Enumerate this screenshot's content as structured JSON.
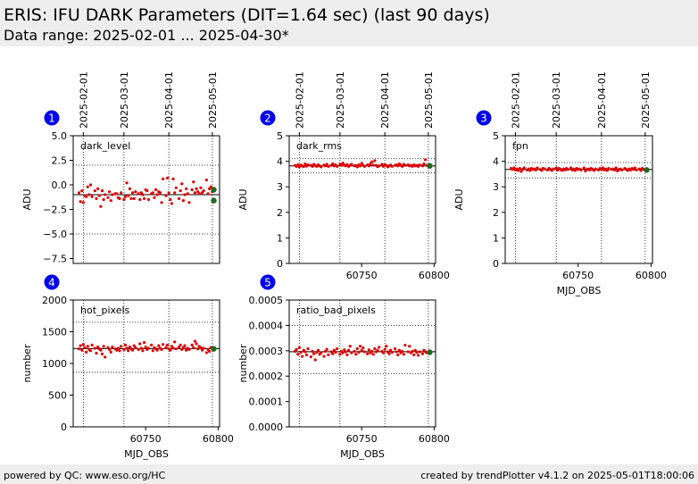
{
  "header": {
    "title": "ERIS: IFU DARK Parameters (DIT=1.64 sec) (last 90 days)",
    "subtitle": "Data range: 2025-02-01 ... 2025-04-30*"
  },
  "footer": {
    "left": "powered by QC: www.eso.org/HC",
    "right": "created by trendPlotter v4.1.2 on 2025-05-01T18:00:06"
  },
  "colors": {
    "points": "#dd0000",
    "latest": "#1f6b1f",
    "badge": "#0000ee",
    "mean_line": "#000000"
  },
  "chart_data": [
    {
      "type": "scatter",
      "badge": "1",
      "label": "dark_level",
      "ylabel": "ADU",
      "xlabel": "",
      "xlim": [
        60700,
        60801
      ],
      "ylim": [
        -8,
        5
      ],
      "yticks": [
        5.0,
        2.5,
        0.0,
        -2.5,
        -5.0,
        -7.5
      ],
      "yticklabels": [
        "5.0",
        "2.5",
        "0.0",
        "−2.5",
        "−5.0",
        "−7.5"
      ],
      "xticks": [],
      "xticklabels": [],
      "top_dates": [
        "2025-02-01",
        "2025-03-01",
        "2025-04-01",
        "2025-05-01"
      ],
      "date_mjd": [
        60707,
        60735,
        60766,
        60796
      ],
      "mean": -1.0,
      "dotted_h": [
        2.0,
        -5.0
      ],
      "x": [
        60704,
        60705,
        60706,
        60707,
        60708,
        60709,
        60710,
        60711,
        60712,
        60713,
        60715,
        60716,
        60717,
        60718,
        60719,
        60720,
        60721,
        60722,
        60724,
        60725,
        60726,
        60727,
        60729,
        60730,
        60731,
        60732,
        60733,
        60735,
        60736,
        60737,
        60738,
        60739,
        60740,
        60741,
        60742,
        60743,
        60745,
        60746,
        60747,
        60748,
        60749,
        60750,
        60751,
        60752,
        60754,
        60755,
        60756,
        60757,
        60758,
        60759,
        60760,
        60761,
        60762,
        60764,
        60765,
        60766,
        60767,
        60768,
        60769,
        60770,
        60771,
        60773,
        60774,
        60775,
        60776,
        60777,
        60778,
        60779,
        60780,
        60782,
        60783,
        60784,
        60785,
        60786,
        60787,
        60788,
        60789,
        60790,
        60792,
        60793,
        60794,
        60795,
        60796
      ],
      "y": [
        -0.8,
        -1.7,
        -0.6,
        -1.8,
        -1.1,
        -1.2,
        -0.2,
        -1.0,
        0.0,
        -1.2,
        -0.6,
        -1.4,
        -0.4,
        -1.1,
        -2.2,
        -0.6,
        -1.5,
        -1.0,
        -1.3,
        -0.7,
        -1.6,
        -1.0,
        -0.9,
        -0.9,
        -1.3,
        -1.4,
        -0.8,
        -1.5,
        -1.2,
        0.2,
        -1.1,
        -0.4,
        -1.4,
        -0.8,
        -1.4,
        -0.7,
        -0.9,
        -1.5,
        -0.8,
        -1.0,
        -1.4,
        -0.5,
        -0.6,
        -1.5,
        -0.9,
        -0.8,
        -1.3,
        -0.5,
        -1.0,
        -0.7,
        -0.8,
        -1.8,
        0.6,
        -1.1,
        0.7,
        -0.8,
        -1.5,
        -1.9,
        0.6,
        -0.8,
        -0.3,
        -1.4,
        -0.6,
        0.1,
        -1.6,
        -1.0,
        -0.4,
        -0.9,
        -1.8,
        -0.5,
        0.3,
        -0.8,
        -0.4,
        -0.7,
        -0.9,
        -0.3,
        -0.8,
        -0.6,
        0.5,
        -0.9,
        -0.4,
        -0.2,
        -0.7
      ],
      "latest": [
        {
          "x": 60797,
          "y": -0.5
        },
        {
          "x": 60797,
          "y": -1.6
        }
      ]
    },
    {
      "type": "scatter",
      "badge": "2",
      "label": "dark_rms",
      "ylabel": "ADU",
      "xlabel": "",
      "xlim": [
        60700,
        60801
      ],
      "ylim": [
        0,
        5
      ],
      "yticks": [
        0,
        1,
        2,
        3,
        4,
        5
      ],
      "yticklabels": [
        "0",
        "1",
        "2",
        "3",
        "4",
        "5"
      ],
      "xticks": [
        60750,
        60800
      ],
      "xticklabels": [
        "60750",
        "60800"
      ],
      "top_dates": [
        "2025-02-01",
        "2025-03-01",
        "2025-04-01",
        "2025-05-01"
      ],
      "date_mjd": [
        60707,
        60735,
        60766,
        60796
      ],
      "mean": 3.82,
      "dotted_h": [
        4.1,
        3.55
      ],
      "x": [
        60704,
        60705,
        60706,
        60707,
        60708,
        60709,
        60710,
        60711,
        60712,
        60713,
        60715,
        60716,
        60717,
        60718,
        60719,
        60720,
        60721,
        60722,
        60724,
        60725,
        60726,
        60727,
        60729,
        60730,
        60731,
        60732,
        60733,
        60735,
        60736,
        60737,
        60738,
        60739,
        60740,
        60741,
        60742,
        60743,
        60745,
        60746,
        60747,
        60748,
        60749,
        60750,
        60751,
        60752,
        60754,
        60755,
        60756,
        60757,
        60758,
        60759,
        60760,
        60761,
        60762,
        60764,
        60765,
        60766,
        60767,
        60768,
        60769,
        60770,
        60771,
        60773,
        60774,
        60775,
        60776,
        60777,
        60778,
        60779,
        60780,
        60782,
        60783,
        60784,
        60785,
        60786,
        60787,
        60788,
        60789,
        60790,
        60792,
        60793,
        60794,
        60795
      ],
      "y": [
        3.84,
        3.8,
        3.86,
        3.78,
        3.85,
        3.82,
        3.79,
        3.9,
        3.81,
        3.86,
        3.84,
        3.8,
        3.88,
        3.83,
        3.8,
        3.86,
        3.82,
        3.78,
        3.85,
        3.82,
        3.88,
        3.8,
        3.84,
        3.9,
        3.82,
        3.86,
        3.8,
        3.88,
        3.84,
        3.93,
        3.85,
        3.82,
        3.87,
        3.8,
        3.84,
        3.88,
        3.82,
        3.84,
        3.78,
        3.86,
        3.82,
        3.92,
        3.84,
        3.8,
        3.86,
        3.82,
        3.9,
        3.98,
        3.85,
        4.02,
        3.84,
        3.79,
        3.82,
        3.88,
        3.8,
        3.86,
        3.84,
        3.78,
        3.82,
        3.85,
        3.8,
        3.84,
        3.86,
        3.82,
        3.9,
        3.84,
        3.8,
        3.88,
        3.84,
        3.86,
        3.82,
        3.84,
        3.8,
        3.86,
        3.82,
        3.84,
        3.8,
        3.86,
        3.82,
        3.9,
        4.06,
        3.84
      ],
      "latest": [
        {
          "x": 60797,
          "y": 3.82
        }
      ]
    },
    {
      "type": "scatter",
      "badge": "3",
      "label": "fpn",
      "ylabel": "ADU",
      "xlabel": "MJD_OBS",
      "xlim": [
        60700,
        60801
      ],
      "ylim": [
        0,
        5
      ],
      "yticks": [
        0,
        1,
        2,
        3,
        4,
        5
      ],
      "yticklabels": [
        "0",
        "1",
        "2",
        "3",
        "4",
        "5"
      ],
      "xticks": [
        60750,
        60800
      ],
      "xticklabels": [
        "60750",
        "60800"
      ],
      "top_dates": [
        "2025-02-01",
        "2025-03-01",
        "2025-04-01",
        "2025-05-01"
      ],
      "date_mjd": [
        60707,
        60735,
        60766,
        60796
      ],
      "mean": 3.68,
      "dotted_h": [
        3.95,
        3.35
      ],
      "x": [
        60704,
        60705,
        60706,
        60707,
        60708,
        60709,
        60710,
        60711,
        60712,
        60713,
        60715,
        60716,
        60717,
        60718,
        60719,
        60720,
        60721,
        60722,
        60724,
        60725,
        60726,
        60727,
        60729,
        60730,
        60731,
        60732,
        60733,
        60735,
        60736,
        60737,
        60738,
        60739,
        60740,
        60741,
        60742,
        60743,
        60745,
        60746,
        60747,
        60748,
        60749,
        60750,
        60751,
        60752,
        60754,
        60755,
        60756,
        60757,
        60758,
        60759,
        60760,
        60761,
        60762,
        60764,
        60765,
        60766,
        60767,
        60768,
        60769,
        60770,
        60771,
        60773,
        60774,
        60775,
        60776,
        60777,
        60778,
        60779,
        60780,
        60782,
        60783,
        60784,
        60785,
        60786,
        60787,
        60788,
        60789,
        60790,
        60792,
        60793,
        60794,
        60795
      ],
      "y": [
        3.72,
        3.68,
        3.74,
        3.66,
        3.7,
        3.64,
        3.72,
        3.6,
        3.68,
        3.74,
        3.66,
        3.7,
        3.64,
        3.72,
        3.68,
        3.7,
        3.66,
        3.74,
        3.68,
        3.64,
        3.72,
        3.7,
        3.66,
        3.72,
        3.68,
        3.64,
        3.7,
        3.74,
        3.66,
        3.72,
        3.68,
        3.64,
        3.7,
        3.66,
        3.72,
        3.68,
        3.74,
        3.66,
        3.7,
        3.64,
        3.72,
        3.68,
        3.7,
        3.66,
        3.74,
        3.62,
        3.68,
        3.7,
        3.66,
        3.72,
        3.68,
        3.64,
        3.7,
        3.66,
        3.72,
        3.68,
        3.74,
        3.66,
        3.7,
        3.64,
        3.72,
        3.68,
        3.7,
        3.66,
        3.74,
        3.62,
        3.68,
        3.7,
        3.66,
        3.72,
        3.68,
        3.64,
        3.7,
        3.66,
        3.72,
        3.68,
        3.74,
        3.66,
        3.7,
        3.64,
        3.72,
        3.68
      ],
      "latest": [
        {
          "x": 60797,
          "y": 3.66
        }
      ]
    },
    {
      "type": "scatter",
      "badge": "4",
      "label": "hot_pixels",
      "ylabel": "number",
      "xlabel": "MJD_OBS",
      "xlim": [
        60700,
        60801
      ],
      "ylim": [
        0,
        2000
      ],
      "yticks": [
        0,
        500,
        1000,
        1500,
        2000
      ],
      "yticklabels": [
        "0",
        "500",
        "1000",
        "1500",
        "2000"
      ],
      "xticks": [
        60750,
        60800
      ],
      "xticklabels": [
        "60750",
        "60800"
      ],
      "top_dates": [],
      "date_mjd": [
        60707,
        60735,
        60766,
        60796
      ],
      "mean": 1235,
      "dotted_h": [
        1650,
        860
      ],
      "x": [
        60704,
        60705,
        60706,
        60707,
        60708,
        60709,
        60710,
        60711,
        60712,
        60713,
        60715,
        60716,
        60717,
        60718,
        60719,
        60720,
        60721,
        60722,
        60724,
        60725,
        60726,
        60727,
        60729,
        60730,
        60731,
        60732,
        60733,
        60735,
        60736,
        60737,
        60738,
        60739,
        60740,
        60741,
        60742,
        60743,
        60745,
        60746,
        60747,
        60748,
        60749,
        60750,
        60751,
        60752,
        60754,
        60755,
        60756,
        60757,
        60758,
        60759,
        60760,
        60761,
        60762,
        60764,
        60765,
        60766,
        60767,
        60768,
        60769,
        60770,
        60771,
        60773,
        60774,
        60775,
        60776,
        60777,
        60778,
        60779,
        60780,
        60782,
        60783,
        60784,
        60785,
        60786,
        60787,
        60788,
        60789,
        60790,
        60792,
        60793,
        60794,
        60795
      ],
      "y": [
        1230,
        1280,
        1210,
        1300,
        1250,
        1180,
        1270,
        1220,
        1200,
        1290,
        1240,
        1160,
        1260,
        1230,
        1210,
        1150,
        1270,
        1100,
        1250,
        1220,
        1180,
        1260,
        1230,
        1210,
        1240,
        1200,
        1270,
        1220,
        1290,
        1240,
        1200,
        1260,
        1230,
        1210,
        1280,
        1250,
        1220,
        1310,
        1240,
        1200,
        1330,
        1260,
        1220,
        1240,
        1290,
        1200,
        1250,
        1230,
        1210,
        1280,
        1240,
        1220,
        1300,
        1250,
        1290,
        1230,
        1210,
        1270,
        1240,
        1340,
        1230,
        1260,
        1290,
        1220,
        1250,
        1280,
        1210,
        1240,
        1220,
        1290,
        1250,
        1350,
        1310,
        1230,
        1270,
        1250,
        1210,
        1240,
        1170,
        1220,
        1190,
        1250
      ],
      "latest": [
        {
          "x": 60797,
          "y": 1230
        }
      ]
    },
    {
      "type": "scatter",
      "badge": "5",
      "label": "ratio_bad_pixels",
      "ylabel": "number",
      "xlabel": "MJD_OBS",
      "xlim": [
        60700,
        60801
      ],
      "ylim": [
        0,
        0.0005
      ],
      "yticks": [
        0,
        0.0001,
        0.0002,
        0.0003,
        0.0004,
        0.0005
      ],
      "yticklabels": [
        "0.0000",
        "0.0001",
        "0.0002",
        "0.0003",
        "0.0004",
        "0.0005"
      ],
      "xticks": [
        60750,
        60800
      ],
      "xticklabels": [
        "60750",
        "60800"
      ],
      "top_dates": [],
      "date_mjd": [
        60707,
        60735,
        60766,
        60796
      ],
      "mean": 0.000296,
      "dotted_h": [
        0.0004,
        0.00021
      ],
      "x": [
        60704,
        60705,
        60706,
        60707,
        60708,
        60709,
        60710,
        60711,
        60712,
        60713,
        60715,
        60716,
        60717,
        60718,
        60719,
        60720,
        60721,
        60722,
        60724,
        60725,
        60726,
        60727,
        60729,
        60730,
        60731,
        60732,
        60733,
        60735,
        60736,
        60737,
        60738,
        60739,
        60740,
        60741,
        60742,
        60743,
        60745,
        60746,
        60747,
        60748,
        60749,
        60750,
        60751,
        60752,
        60754,
        60755,
        60756,
        60757,
        60758,
        60759,
        60760,
        60761,
        60762,
        60764,
        60765,
        60766,
        60767,
        60768,
        60769,
        60770,
        60771,
        60773,
        60774,
        60775,
        60776,
        60777,
        60778,
        60779,
        60780,
        60782,
        60783,
        60784,
        60785,
        60786,
        60787,
        60788,
        60789,
        60790,
        60792,
        60793,
        60794,
        60795
      ],
      "y": [
        0.000298,
        0.000305,
        0.000286,
        0.000312,
        0.000294,
        0.000278,
        0.000302,
        0.000296,
        0.000284,
        0.000308,
        0.000276,
        0.000298,
        0.000288,
        0.000264,
        0.000294,
        0.000302,
        0.000286,
        0.000292,
        0.000278,
        0.000298,
        0.000306,
        0.000284,
        0.000296,
        0.000288,
        0.000302,
        0.000294,
        0.000308,
        0.000286,
        0.000298,
        0.000292,
        0.000304,
        0.000296,
        0.000284,
        0.000302,
        0.000318,
        0.000292,
        0.000298,
        0.000286,
        0.000308,
        0.000294,
        0.000318,
        0.000302,
        0.000312,
        0.000296,
        0.000288,
        0.000304,
        0.000292,
        0.000298,
        0.000286,
        0.000308,
        0.000296,
        0.000302,
        0.000314,
        0.000298,
        0.000292,
        0.000306,
        0.000318,
        0.000296,
        0.000288,
        0.000302,
        0.000294,
        0.000308,
        0.000296,
        0.000284,
        0.000302,
        0.000292,
        0.000298,
        0.000286,
        0.000322,
        0.000296,
        0.000318,
        0.000292,
        0.000298,
        0.000284,
        0.000302,
        0.000294,
        0.000282,
        0.000296,
        0.000288,
        0.000302,
        0.000296,
        0.000292
      ],
      "latest": [
        {
          "x": 60797,
          "y": 0.000294
        }
      ]
    }
  ]
}
